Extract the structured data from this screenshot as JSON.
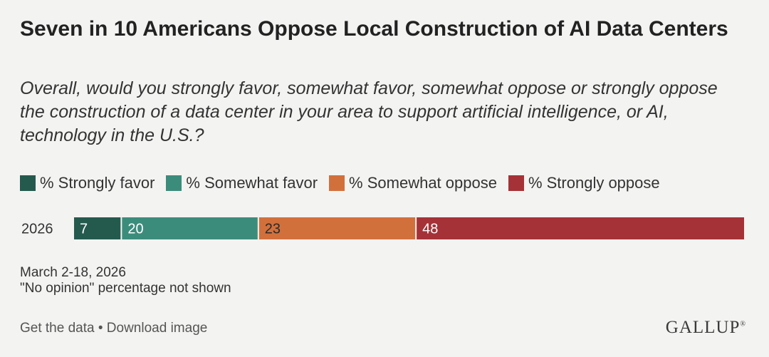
{
  "title": "Seven in 10 Americans Oppose Local Construction of AI Data Centers",
  "subtitle": "Overall, would you strongly favor, somewhat favor, somewhat oppose or strongly oppose the construction of a data center in your area to support artificial intelligence, or AI, technology in the U.S.?",
  "colors": {
    "strongly_favor": "#245a4e",
    "somewhat_favor": "#3c8c7c",
    "somewhat_oppose": "#d2703c",
    "strongly_oppose": "#a53237",
    "background": "#f3f3f1"
  },
  "chart_data": {
    "type": "bar",
    "orientation": "horizontal",
    "stacked": true,
    "categories": [
      "2026"
    ],
    "series": [
      {
        "name": "% Strongly favor",
        "values": [
          7
        ],
        "color": "#245a4e"
      },
      {
        "name": "% Somewhat favor",
        "values": [
          20
        ],
        "color": "#3c8c7c"
      },
      {
        "name": "% Somewhat oppose",
        "values": [
          23
        ],
        "color": "#d2703c"
      },
      {
        "name": "% Strongly oppose",
        "values": [
          48
        ],
        "color": "#a53237"
      }
    ],
    "title": "Seven in 10 Americans Oppose Local Construction of AI Data Centers",
    "xlabel": "",
    "ylabel": "",
    "xlim": [
      0,
      98
    ],
    "grid": false,
    "legend": "top-left"
  },
  "notes": {
    "dates": "March 2-18, 2026",
    "no_opinion": "\"No opinion\" percentage not shown"
  },
  "footer": {
    "get_data": "Get the data",
    "separator": "•",
    "download": "Download image",
    "brand": "GALLUP",
    "brand_mark": "®"
  }
}
